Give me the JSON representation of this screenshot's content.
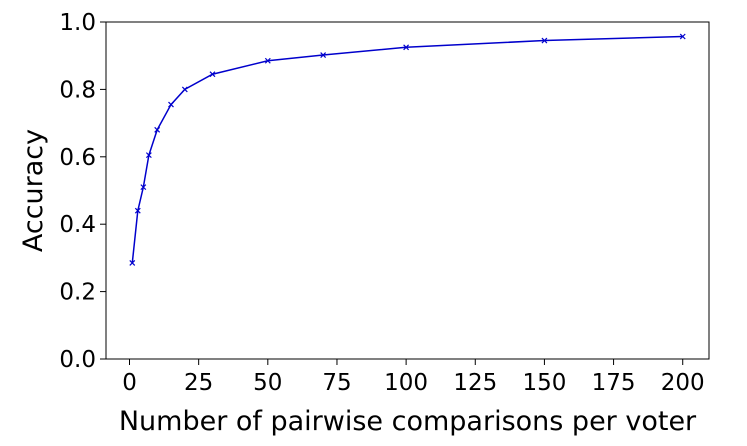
{
  "chart_data": {
    "type": "line",
    "title": "",
    "xlabel": "Number of pairwise comparisons per voter",
    "ylabel": "Accuracy",
    "xlim": [
      -8.5,
      209.5
    ],
    "ylim": [
      0.0,
      1.0
    ],
    "xticks": [
      0,
      25,
      50,
      75,
      100,
      125,
      150,
      175,
      200
    ],
    "xtick_labels": [
      "0",
      "25",
      "50",
      "75",
      "100",
      "125",
      "150",
      "175",
      "200"
    ],
    "yticks": [
      0.0,
      0.2,
      0.4,
      0.6,
      0.8,
      1.0
    ],
    "ytick_labels": [
      "0.0",
      "0.2",
      "0.4",
      "0.6",
      "0.8",
      "1.0"
    ],
    "grid": false,
    "series": [
      {
        "color": "#0000cc",
        "marker": "x",
        "x": [
          1,
          3,
          5,
          7,
          10,
          15,
          20,
          30,
          50,
          70,
          100,
          150,
          200
        ],
        "y": [
          0.285,
          0.44,
          0.51,
          0.605,
          0.68,
          0.755,
          0.8,
          0.845,
          0.885,
          0.902,
          0.925,
          0.945,
          0.957
        ]
      }
    ]
  }
}
